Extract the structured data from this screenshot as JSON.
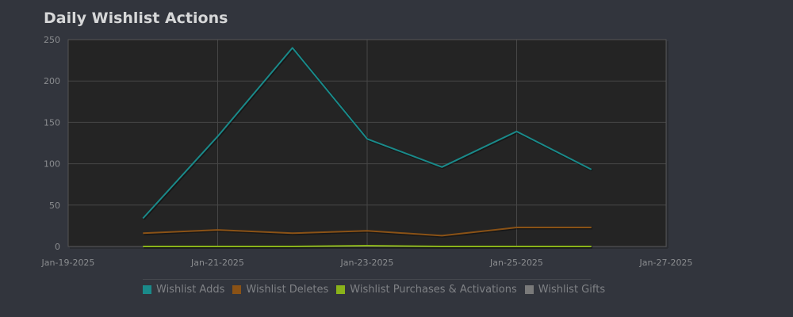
{
  "chart_data": {
    "type": "line",
    "title": "Daily Wishlist Actions",
    "x": [
      "Jan-20-2025",
      "Jan-21-2025",
      "Jan-22-2025",
      "Jan-23-2025",
      "Jan-24-2025",
      "Jan-25-2025",
      "Jan-26-2025"
    ],
    "x_ticks": [
      "Jan-19-2025",
      "Jan-21-2025",
      "Jan-23-2025",
      "Jan-25-2025",
      "Jan-27-2025"
    ],
    "xlim": [
      "Jan-19-2025",
      "Jan-27-2025"
    ],
    "ylim": [
      0,
      250
    ],
    "y_ticks": [
      0,
      50,
      100,
      150,
      200,
      250
    ],
    "grid": true,
    "legend": "bottom",
    "series": [
      {
        "name": "Wishlist Adds",
        "color": "#1a8a8a",
        "values": [
          34,
          133,
          240,
          130,
          96,
          139,
          93
        ]
      },
      {
        "name": "Wishlist Deletes",
        "color": "#8a5216",
        "values": [
          16,
          20,
          16,
          19,
          13,
          23,
          23
        ]
      },
      {
        "name": "Wishlist Purchases & Activations",
        "color": "#8ab31a",
        "values": [
          0,
          0,
          0,
          1,
          0,
          0,
          0
        ]
      },
      {
        "name": "Wishlist Gifts",
        "color": "#7a7a7a",
        "values": [
          0,
          0,
          0,
          0,
          0,
          0,
          0
        ]
      }
    ]
  }
}
